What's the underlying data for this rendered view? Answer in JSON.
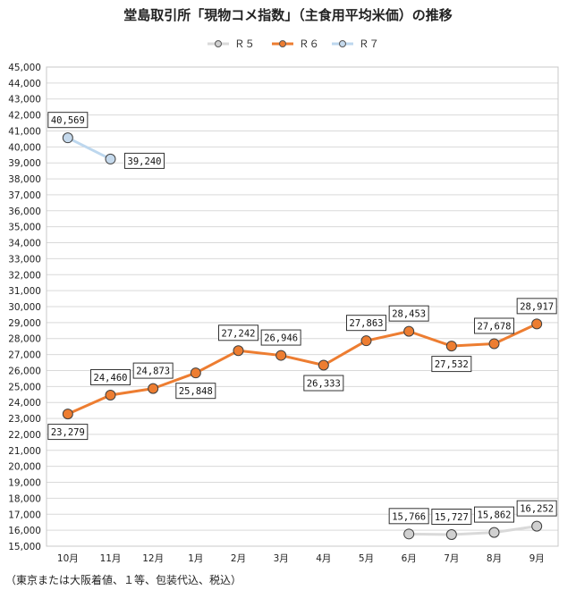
{
  "chart_data": {
    "type": "line",
    "title": "堂島取引所「現物コメ指数」（主食用平均米価）の推移",
    "categories": [
      "10月",
      "11月",
      "12月",
      "1月",
      "2月",
      "3月",
      "4月",
      "5月",
      "6月",
      "7月",
      "8月",
      "9月"
    ],
    "ylim": [
      15000,
      45000
    ],
    "ystep": 1000,
    "ytick_labels": [
      "15,000",
      "16,000",
      "17,000",
      "18,000",
      "19,000",
      "20,000",
      "21,000",
      "22,000",
      "23,000",
      "24,000",
      "25,000",
      "26,000",
      "27,000",
      "28,000",
      "29,000",
      "30,000",
      "31,000",
      "32,000",
      "33,000",
      "34,000",
      "35,000",
      "36,000",
      "37,000",
      "38,000",
      "39,000",
      "40,000",
      "41,000",
      "42,000",
      "43,000",
      "44,000",
      "45,000"
    ],
    "legend_position": "top-center",
    "series": [
      {
        "name": "Ｒ５",
        "color": "#d9d9d9",
        "marker_color": "#d0d0d0",
        "values": [
          null,
          null,
          null,
          null,
          null,
          null,
          null,
          null,
          15766,
          15727,
          15862,
          16252
        ],
        "labels": [
          null,
          null,
          null,
          null,
          null,
          null,
          null,
          null,
          "15,766",
          "15,727",
          "15,862",
          "16,252"
        ]
      },
      {
        "name": "Ｒ６",
        "color": "#ed7d31",
        "marker_color": "#ed7d31",
        "values": [
          23279,
          24460,
          24873,
          25848,
          27242,
          26946,
          26333,
          27863,
          28453,
          27532,
          27678,
          28917
        ],
        "labels": [
          "23,279",
          "24,460",
          "24,873",
          "25,848",
          "27,242",
          "26,946",
          "26,333",
          "27,863",
          "28,453",
          "27,532",
          "27,678",
          "28,917"
        ]
      },
      {
        "name": "Ｒ７",
        "color": "#bdd7ee",
        "marker_color": "#c5d9ec",
        "values": [
          40569,
          39240,
          null,
          null,
          null,
          null,
          null,
          null,
          null,
          null,
          null,
          null
        ],
        "labels": [
          "40,569",
          "39,240",
          null,
          null,
          null,
          null,
          null,
          null,
          null,
          null,
          null,
          null
        ]
      }
    ]
  },
  "footnote": "（東京または大阪着値、１等、包装代込、税込）"
}
